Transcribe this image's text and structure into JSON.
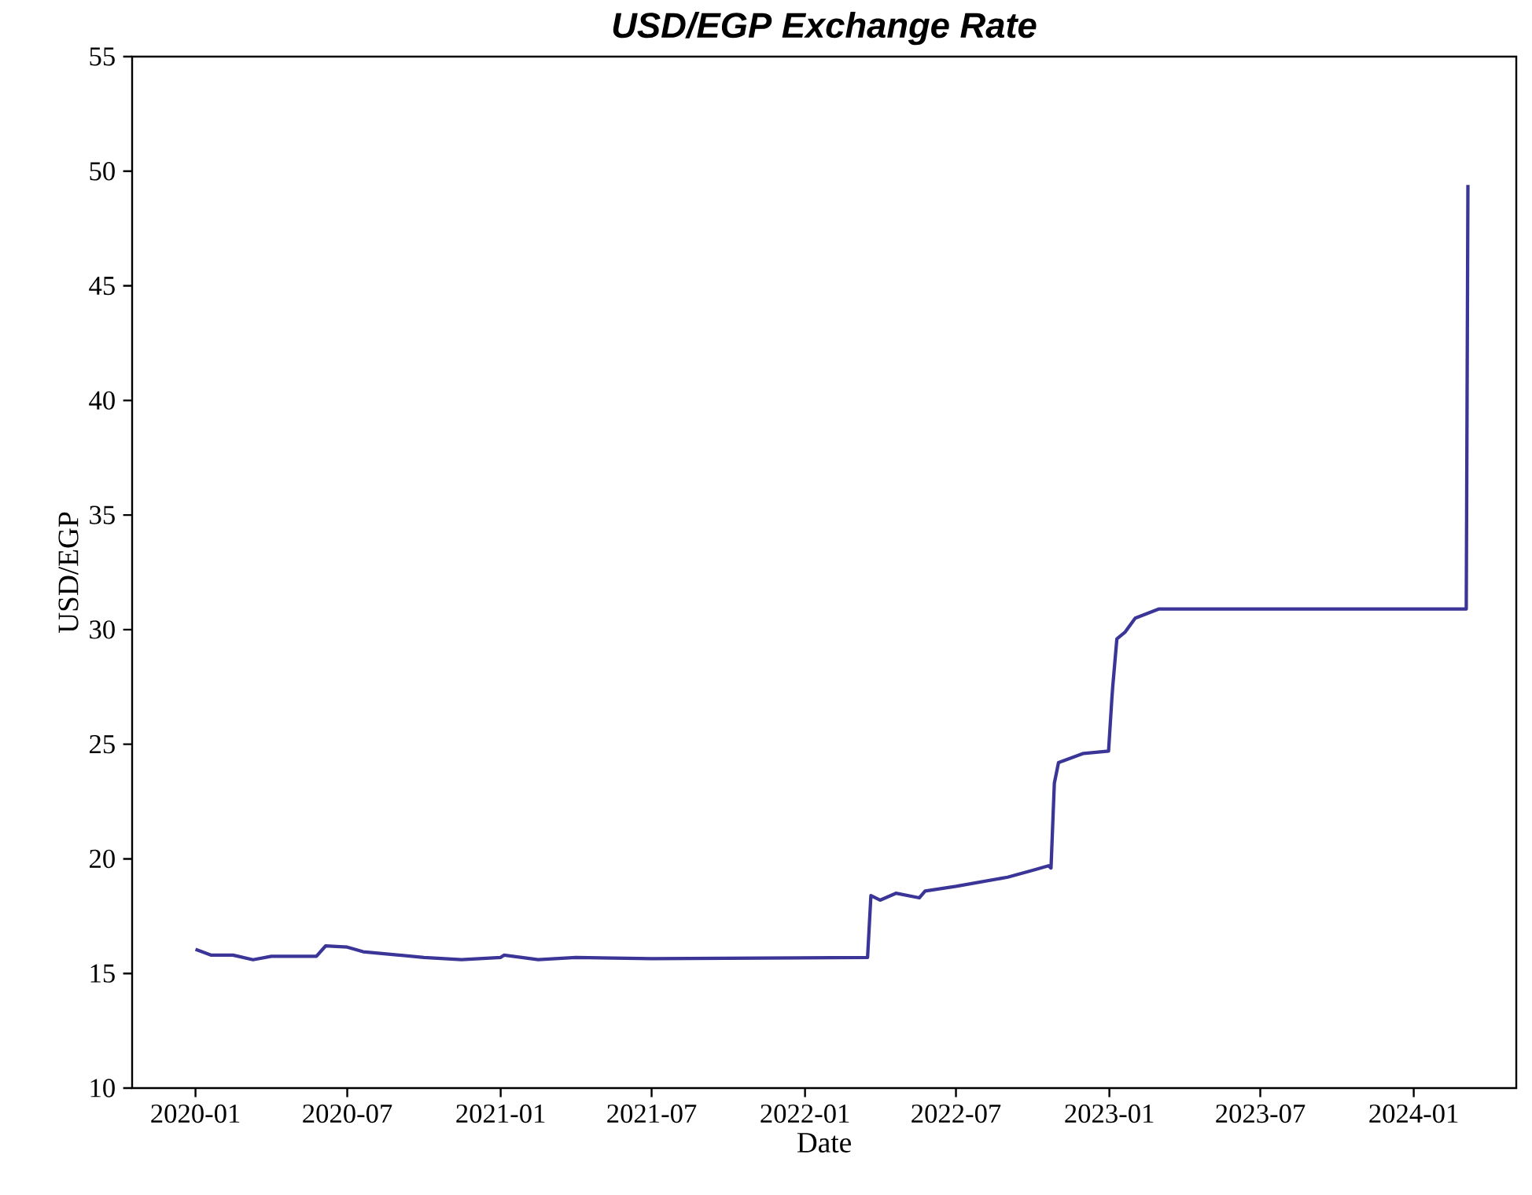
{
  "chart_data": {
    "type": "line",
    "title": "USD/EGP Exchange Rate",
    "xlabel": "Date",
    "ylabel": "USD/EGP",
    "x": [
      "2020-01-01",
      "2020-01-20",
      "2020-02-15",
      "2020-03-10",
      "2020-04-01",
      "2020-05-25",
      "2020-06-05",
      "2020-07-01",
      "2020-07-20",
      "2020-09-01",
      "2020-10-01",
      "2020-11-15",
      "2021-01-01",
      "2021-01-05",
      "2021-02-15",
      "2021-04-01",
      "2021-07-01",
      "2022-03-17",
      "2022-03-21",
      "2022-04-01",
      "2022-04-20",
      "2022-05-18",
      "2022-05-25",
      "2022-07-01",
      "2022-09-01",
      "2022-10-01",
      "2022-10-20",
      "2022-10-23",
      "2022-10-27",
      "2022-11-01",
      "2022-12-01",
      "2022-12-31",
      "2023-01-04",
      "2023-01-05",
      "2023-01-10",
      "2023-01-20",
      "2023-02-01",
      "2023-03-01",
      "2023-07-01",
      "2023-12-01",
      "2024-03-04",
      "2024-03-06"
    ],
    "series": [
      {
        "color": "#3a3596",
        "values": [
          16.05,
          15.8,
          15.8,
          15.6,
          15.75,
          15.75,
          16.2,
          16.15,
          15.95,
          15.8,
          15.7,
          15.6,
          15.7,
          15.8,
          15.6,
          15.7,
          15.65,
          15.7,
          18.4,
          18.2,
          18.5,
          18.3,
          18.6,
          18.8,
          19.2,
          19.5,
          19.7,
          19.6,
          23.3,
          24.2,
          24.6,
          24.7,
          27.0,
          27.5,
          29.6,
          29.9,
          30.5,
          30.9,
          30.9,
          30.9,
          30.9,
          49.4
        ]
      }
    ],
    "xlim": [
      "2019-10-17",
      "2024-05-03"
    ],
    "xticks": [
      "2020-01",
      "2020-07",
      "2021-01",
      "2021-07",
      "2022-01",
      "2022-07",
      "2023-01",
      "2023-07",
      "2024-01"
    ],
    "ylim": [
      10,
      55
    ],
    "yticks": [
      10,
      15,
      20,
      25,
      30,
      35,
      40,
      45,
      50,
      55
    ]
  }
}
